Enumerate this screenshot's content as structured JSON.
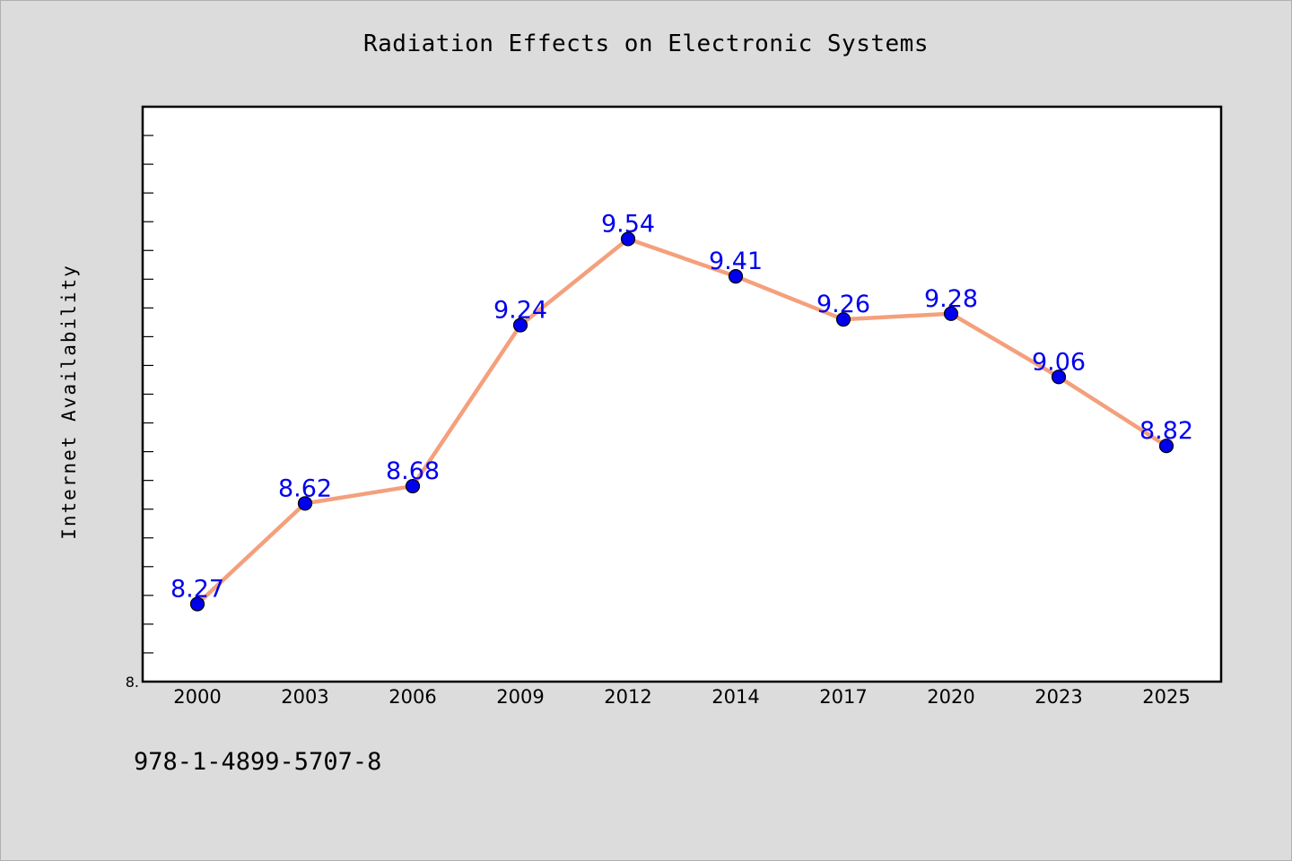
{
  "chart_data": {
    "type": "line",
    "title": "Radiation Effects on Electronic Systems",
    "xlabel": "",
    "ylabel": "Internet Availability",
    "categories": [
      "2000",
      "2003",
      "2006",
      "2009",
      "2012",
      "2014",
      "2017",
      "2020",
      "2023",
      "2025"
    ],
    "series": [
      {
        "values": [
          8.27,
          8.62,
          8.68,
          9.24,
          9.54,
          9.41,
          9.26,
          9.28,
          9.06,
          8.82
        ]
      }
    ],
    "ylim": [
      8.0,
      10.0
    ],
    "y_tick_labels": [
      "8."
    ],
    "data_labels": [
      "8.27",
      "8.62",
      "8.68",
      "9.24",
      "9.54",
      "9.41",
      "9.26",
      "9.28",
      "9.06",
      "8.82"
    ],
    "grid": false,
    "line_color": "#f4a07c",
    "marker_color": "#0000ee",
    "label_color": "#0000ee"
  },
  "footer": {
    "isbn": "978-1-4899-5707-8"
  }
}
